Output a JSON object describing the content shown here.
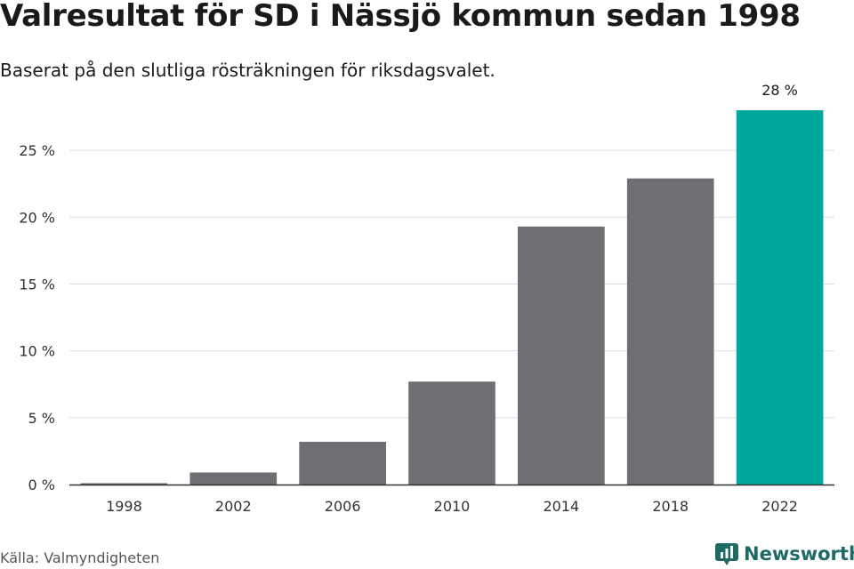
{
  "header": {
    "title": "Valresultat för SD i Nässjö kommun sedan 1998",
    "subtitle": "Baserat på den slutliga rösträkningen för riksdagsvalet."
  },
  "footer": {
    "source": "Källa: Valmyndigheten",
    "brand": "Newsworthy",
    "brand_icon": "newsworthy-logo-icon"
  },
  "colors": {
    "bar": "#6f6e73",
    "highlight": "#00a79d",
    "grid": "#dddddd",
    "axis": "#333333",
    "brand": "#1e6b66"
  },
  "chart_data": {
    "type": "bar",
    "categories": [
      "1998",
      "2002",
      "2006",
      "2010",
      "2014",
      "2018",
      "2022"
    ],
    "values": [
      0.1,
      0.9,
      3.2,
      7.7,
      19.3,
      22.9,
      28.0
    ],
    "highlight_index": 6,
    "data_labels": [
      {
        "index": 6,
        "text": "28 %"
      }
    ],
    "y_ticks": [
      {
        "value": 0,
        "label": "0 %"
      },
      {
        "value": 5,
        "label": "5 %"
      },
      {
        "value": 10,
        "label": "10 %"
      },
      {
        "value": 15,
        "label": "15 %"
      },
      {
        "value": 20,
        "label": "20 %"
      },
      {
        "value": 25,
        "label": "25 %"
      }
    ],
    "ylim": [
      0,
      28
    ],
    "grid": true,
    "legend": "none"
  }
}
